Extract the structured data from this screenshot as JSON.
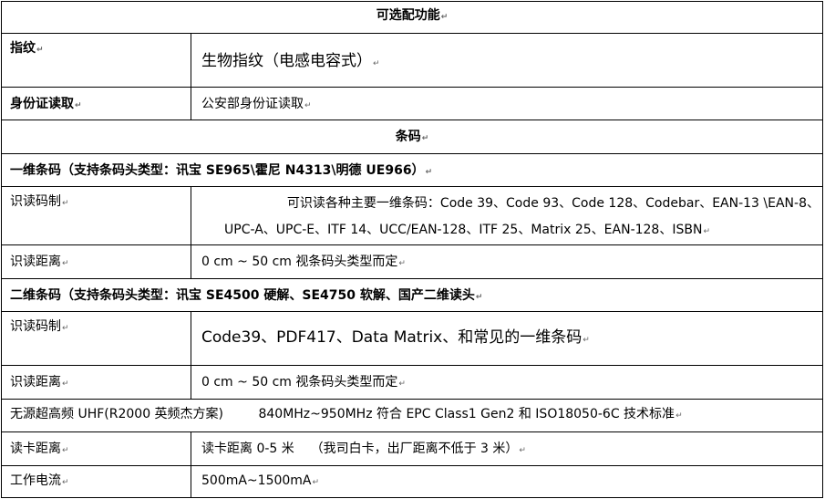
{
  "title": "可选配功能",
  "fingerprint": {
    "label": "指纹",
    "value": "生物指纹（电感电容式）"
  },
  "id_card": {
    "label": "身份证读取",
    "value": "公安部身份证读取"
  },
  "barcode_header": "条码",
  "barcode_1d": {
    "header": "一维条码（支持条码头类型：讯宝 SE965\\霍尼 N4313\\明德 UE966）",
    "symbology_label": "识读码制",
    "symbology_line1": "可识读各种主要一维条码：Code 39、Code 93、Code 128、Codebar、EAN-13 \\EAN-8、",
    "symbology_line2": "UPC-A、UPC-E、ITF 14、UCC/EAN-128、ITF 25、Matrix 25、EAN-128、ISBN",
    "distance_label": "识读距离",
    "distance_value": "0 cm ~ 50 cm  视条码头类型而定"
  },
  "barcode_2d": {
    "header": "二维条码（支持条码头类型：讯宝 SE4500 硬解、SE4750 软解、国产二维读头",
    "symbology_label": "识读码制",
    "symbology_value": "Code39、PDF417、Data Matrix、和常见的一维条码",
    "distance_label": "识读距离",
    "distance_value": "0 cm ~ 50 cm  视条码头类型而定"
  },
  "uhf": {
    "label": "无源超高频 UHF(R2000 英频杰方案)",
    "value": "840MHz~950MHz 符合 EPC Class1 Gen2 和 ISO18050-6C 技术标准"
  },
  "read_distance": {
    "label": "读卡距离",
    "value": "读卡距离 0-5 米    （我司白卡，出厂距离不低于 3 米）"
  },
  "current": {
    "label": "工作电流",
    "value": "500mA~1500mA"
  }
}
